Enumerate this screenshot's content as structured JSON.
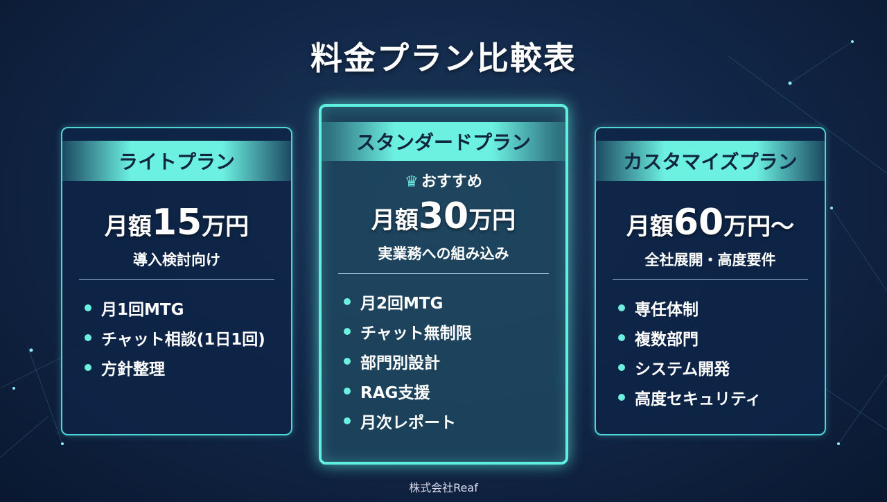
{
  "title": "料金プラン比較表",
  "footer": "株式会社Reaf",
  "colors": {
    "accent": "#6cf0e0",
    "background": "#12284a"
  },
  "plans": [
    {
      "name": "ライトプラン",
      "price_prefix": "月額",
      "price_value": "15",
      "price_suffix": "万円",
      "tagline": "導入検討向け",
      "features": [
        "月1回MTG",
        "チャット相談(1日1回)",
        "方針整理"
      ]
    },
    {
      "name": "スタンダードプラン",
      "badge_icon": "crown-icon",
      "badge": "おすすめ",
      "price_prefix": "月額",
      "price_value": "30",
      "price_suffix": "万円",
      "tagline": "実業務への組み込み",
      "features": [
        "月2回MTG",
        "チャット無制限",
        "部門別設計",
        "RAG支援",
        "月次レポート"
      ]
    },
    {
      "name": "カスタマイズプラン",
      "price_prefix": "月額",
      "price_value": "60",
      "price_suffix": "万円～",
      "tagline": "全社展開・高度要件",
      "features": [
        "専任体制",
        "複数部門",
        "システム開発",
        "高度セキュリティ"
      ]
    }
  ]
}
